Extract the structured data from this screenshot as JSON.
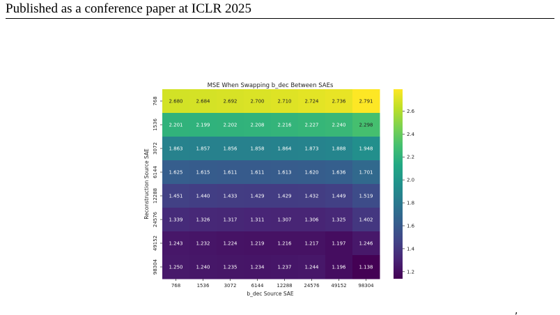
{
  "header": {
    "text": "Published as a conference paper at ICLR 2025"
  },
  "footnote_mark": ",",
  "chart_data": {
    "type": "heatmap",
    "title": "MSE When Swapping b_dec Between SAEs",
    "xlabel": "b_dec Source SAE",
    "ylabel": "Reconstruction Source SAE",
    "x_categories": [
      "768",
      "1536",
      "3072",
      "6144",
      "12288",
      "24576",
      "49152",
      "98304"
    ],
    "y_categories": [
      "768",
      "1536",
      "3072",
      "6144",
      "12288",
      "24576",
      "49152",
      "98304"
    ],
    "values": [
      [
        "2.680",
        "2.684",
        "2.692",
        "2.700",
        "2.710",
        "2.724",
        "2.736",
        "2.791"
      ],
      [
        "2.201",
        "2.199",
        "2.202",
        "2.208",
        "2.216",
        "2.227",
        "2.240",
        "2.298"
      ],
      [
        "1.863",
        "1.857",
        "1.856",
        "1.858",
        "1.864",
        "1.873",
        "1.888",
        "1.948"
      ],
      [
        "1.625",
        "1.615",
        "1.611",
        "1.611",
        "1.613",
        "1.620",
        "1.636",
        "1.701"
      ],
      [
        "1.451",
        "1.440",
        "1.433",
        "1.429",
        "1.429",
        "1.432",
        "1.449",
        "1.519"
      ],
      [
        "1.339",
        "1.326",
        "1.317",
        "1.311",
        "1.307",
        "1.306",
        "1.325",
        "1.402"
      ],
      [
        "1.243",
        "1.232",
        "1.224",
        "1.219",
        "1.216",
        "1.217",
        "1.197",
        "1.246"
      ],
      [
        "1.250",
        "1.240",
        "1.235",
        "1.234",
        "1.237",
        "1.244",
        "1.196",
        "1.138"
      ]
    ],
    "colormap": "viridis",
    "colorbar": {
      "min": 1.138,
      "max": 2.791,
      "ticks": [
        "1.2",
        "1.4",
        "1.6",
        "1.8",
        "2.0",
        "2.2",
        "2.4",
        "2.6"
      ]
    }
  }
}
